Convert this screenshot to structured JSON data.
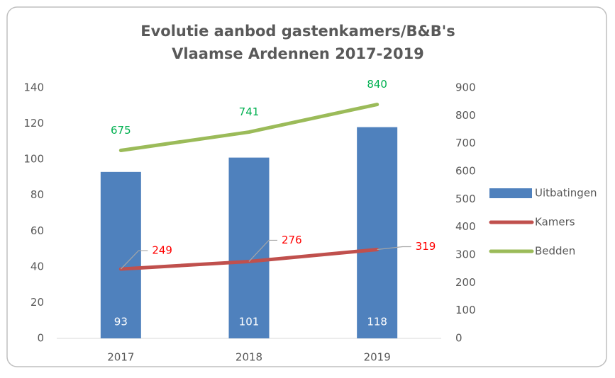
{
  "chart_data": {
    "type": "combo",
    "title": [
      "Evolutie aanbod gastenkamers/B&B's",
      "Vlaamse Ardennen 2017-2019"
    ],
    "categories": [
      "2017",
      "2018",
      "2019"
    ],
    "series": [
      {
        "name": "Uitbatingen",
        "type": "bar",
        "axis": "y",
        "color": "#4f81bd",
        "label_color": "#ffffff",
        "values": [
          93,
          101,
          118
        ]
      },
      {
        "name": "Kamers",
        "type": "line",
        "axis": "y2",
        "color": "#c0504d",
        "label_color": "#ff0000",
        "values": [
          249,
          276,
          319
        ]
      },
      {
        "name": "Bedden",
        "type": "line",
        "axis": "y2",
        "color": "#9bbb59",
        "label_color": "#00b050",
        "values": [
          675,
          741,
          840
        ]
      }
    ],
    "ylim": [
      0,
      140
    ],
    "yticks": [
      0,
      20,
      40,
      60,
      80,
      100,
      120,
      140
    ],
    "y2lim": [
      0,
      900
    ],
    "y2ticks": [
      0,
      100,
      200,
      300,
      400,
      500,
      600,
      700,
      800,
      900
    ],
    "grid": false,
    "legend": "right"
  }
}
